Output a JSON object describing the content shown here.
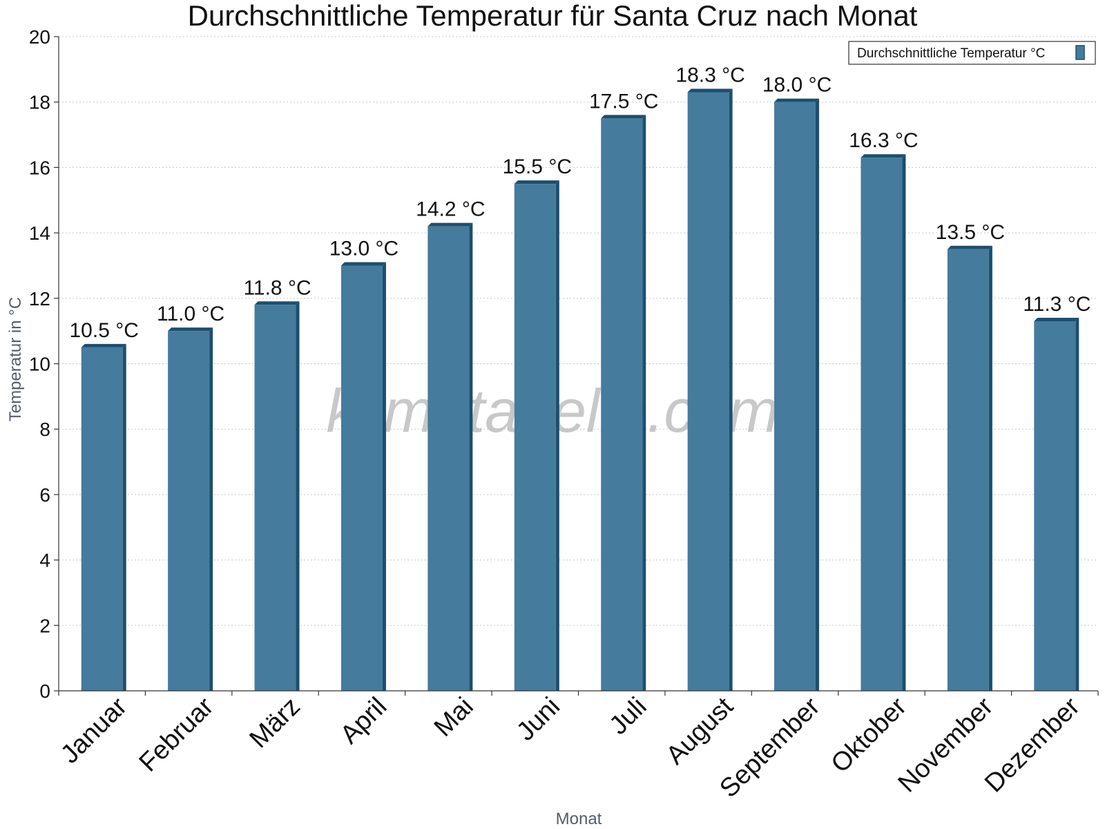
{
  "chart_data": {
    "type": "bar",
    "title": "Durchschnittliche Temperatur für Santa Cruz nach Monat",
    "xlabel": "Monat",
    "ylabel": "Temperatur in °C",
    "ylim": [
      0,
      20
    ],
    "yticks": [
      "0",
      "2",
      "4",
      "6",
      "8",
      "10",
      "12",
      "14",
      "16",
      "18",
      "20"
    ],
    "categories": [
      "Januar",
      "Februar",
      "März",
      "April",
      "Mai",
      "Juni",
      "Juli",
      "August",
      "September",
      "Oktober",
      "November",
      "Dezember"
    ],
    "series": [
      {
        "name": "Durchschnittliche Temperatur °C",
        "values": [
          10.5,
          11.0,
          11.8,
          13.0,
          14.2,
          15.5,
          17.5,
          18.3,
          18.0,
          16.3,
          13.5,
          11.3
        ],
        "labels": [
          "10.5 °C",
          "11.0 °C",
          "11.8 °C",
          "13.0 °C",
          "14.2 °C",
          "15.5 °C",
          "17.5 °C",
          "18.3 °C",
          "18.0 °C",
          "16.3 °C",
          "13.5 °C",
          "11.3 °C"
        ],
        "color": "#457b9d",
        "side_color": "#1d4e6e"
      }
    ],
    "grid": true,
    "legend_position": "top-right",
    "watermark": "klimatabelle.com"
  }
}
